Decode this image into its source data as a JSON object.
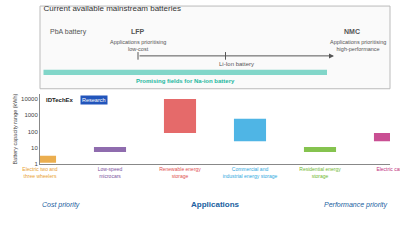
{
  "chart_data": {
    "type": "bar",
    "title": "Current available mainstream batteries",
    "xlabel": "Applications",
    "ylabel": "Battery capacity range (kWh)",
    "categories": [
      "Electric two and\nthree wheelers",
      "Low-speed\nmicrocars",
      "Renewable energy\nstorage",
      "Commercial and\nindustrial energy storage",
      "Residential energy\nstorage",
      "Electric cars"
    ],
    "values": [
      [
        1.2,
        3.2
      ],
      [
        5.5,
        11.0
      ],
      [
        80,
        10000
      ],
      [
        25,
        600
      ],
      [
        5.5,
        11.0
      ],
      [
        25,
        80
      ]
    ],
    "colors": [
      "#E8A030",
      "#7B52A0",
      "#E05050",
      "#30A8E0",
      "#70B830",
      "#C03080"
    ],
    "log": "y",
    "ylim": [
      1,
      20000
    ],
    "yticks": [
      1,
      10,
      100,
      1000,
      10000
    ],
    "grid": false,
    "annotations": [
      "IDTechEx",
      "Research",
      "PbA battery",
      "LFP",
      "Applications prioritising\nlow-cost",
      "Li-Ion battery",
      "NMC",
      "Applications prioritising\nhigh-performance",
      "Promising fields for Na-ion battery",
      "Cost priority",
      "Performance priority"
    ]
  }
}
